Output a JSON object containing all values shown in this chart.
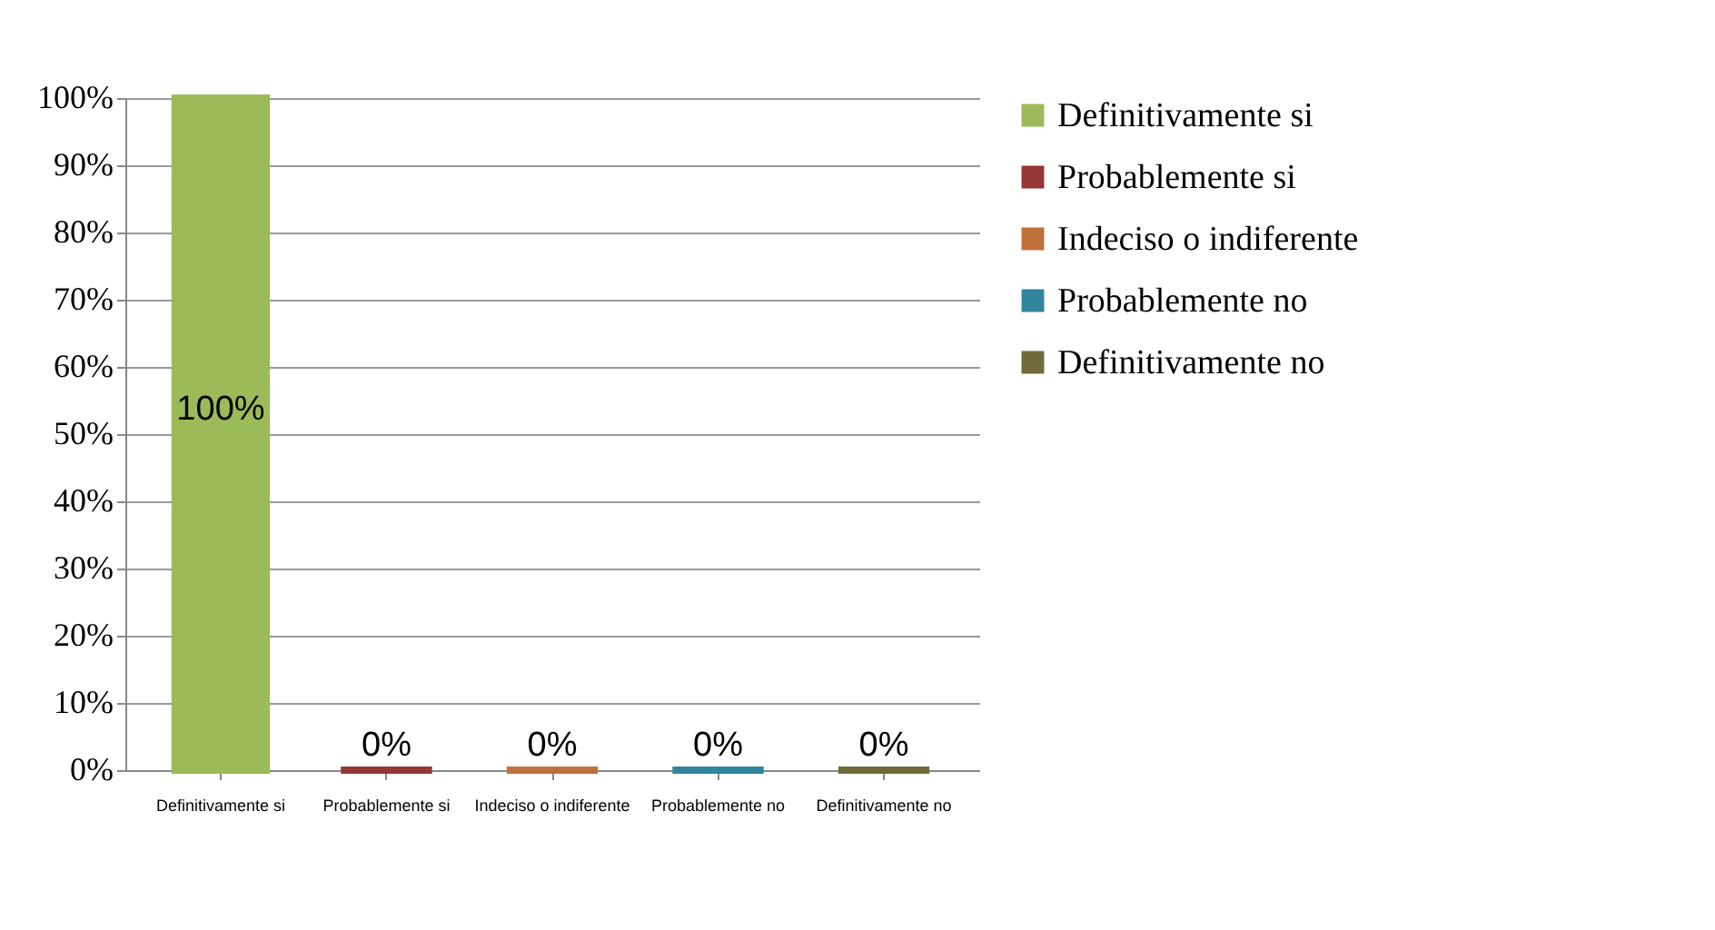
{
  "chart_data": {
    "type": "bar",
    "categories": [
      "Definitivamente si",
      "Probablemente si",
      "Indeciso o indiferente",
      "Probablemente no",
      "Definitivamente no"
    ],
    "stacked": true,
    "series": [
      {
        "name": "Definitivamente si",
        "color": "#9bbb59",
        "values": [
          100,
          null,
          null,
          null,
          null
        ],
        "value_labels": [
          "100%",
          null,
          null,
          null,
          null
        ]
      },
      {
        "name": "Probablemente si",
        "color": "#953735",
        "values": [
          null,
          0,
          null,
          null,
          null
        ],
        "value_labels": [
          null,
          "0%",
          null,
          null,
          null
        ]
      },
      {
        "name": "Indeciso o indiferente",
        "color": "#c0703a",
        "values": [
          null,
          null,
          0,
          null,
          null
        ],
        "value_labels": [
          null,
          null,
          "0%",
          null,
          null
        ]
      },
      {
        "name": "Probablemente no",
        "color": "#31859c",
        "values": [
          null,
          null,
          null,
          0,
          null
        ],
        "value_labels": [
          null,
          null,
          null,
          "0%",
          null
        ]
      },
      {
        "name": "Definitivamente no",
        "color": "#716a3c",
        "values": [
          null,
          null,
          null,
          null,
          0
        ],
        "value_labels": [
          null,
          null,
          null,
          null,
          "0%"
        ]
      }
    ],
    "ylim": [
      0,
      100
    ],
    "yticks": [
      {
        "value": 0,
        "label": "0%"
      },
      {
        "value": 10,
        "label": "10%"
      },
      {
        "value": 20,
        "label": "20%"
      },
      {
        "value": 30,
        "label": "30%"
      },
      {
        "value": 40,
        "label": "40%"
      },
      {
        "value": 50,
        "label": "50%"
      },
      {
        "value": 60,
        "label": "60%"
      },
      {
        "value": 70,
        "label": "70%"
      },
      {
        "value": 80,
        "label": "80%"
      },
      {
        "value": 90,
        "label": "90%"
      },
      {
        "value": 100,
        "label": "100%"
      }
    ],
    "grid": true,
    "legend": "right"
  }
}
